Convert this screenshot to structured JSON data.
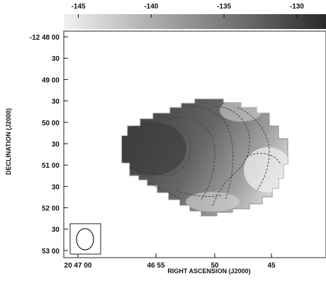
{
  "chart_data": {
    "type": "heatmap",
    "title": "",
    "xlabel": "RIGHT ASCENSION (J2000)",
    "ylabel": "DECLINATION (J2000)",
    "colorbar": {
      "ticks": [
        "-145",
        "-140",
        "-135",
        "-130"
      ],
      "tick_values": [
        -145,
        -140,
        -135,
        -130
      ],
      "range": [
        -146,
        -128
      ],
      "colormap": "grayscale (light to dark)"
    },
    "x_ticks": [
      "20 47 00",
      "46 55",
      "50",
      "45"
    ],
    "y_ticks": [
      "-12 48 00",
      "30",
      "49 00",
      "30",
      "50 00",
      "30",
      "51 00",
      "30",
      "52 00",
      "30",
      "53 00"
    ],
    "y_tick_values_arcsec": [
      0,
      30,
      60,
      90,
      120,
      150,
      180,
      210,
      240,
      270,
      300
    ],
    "y_range_arcsec": [
      -8,
      310
    ],
    "contours": "dashed",
    "beam": "ellipse, lower-left",
    "colors": {
      "dark": "#3f3f3f",
      "mid": "#7d7d7d",
      "light": "#dedede",
      "contour": "#444444"
    }
  }
}
